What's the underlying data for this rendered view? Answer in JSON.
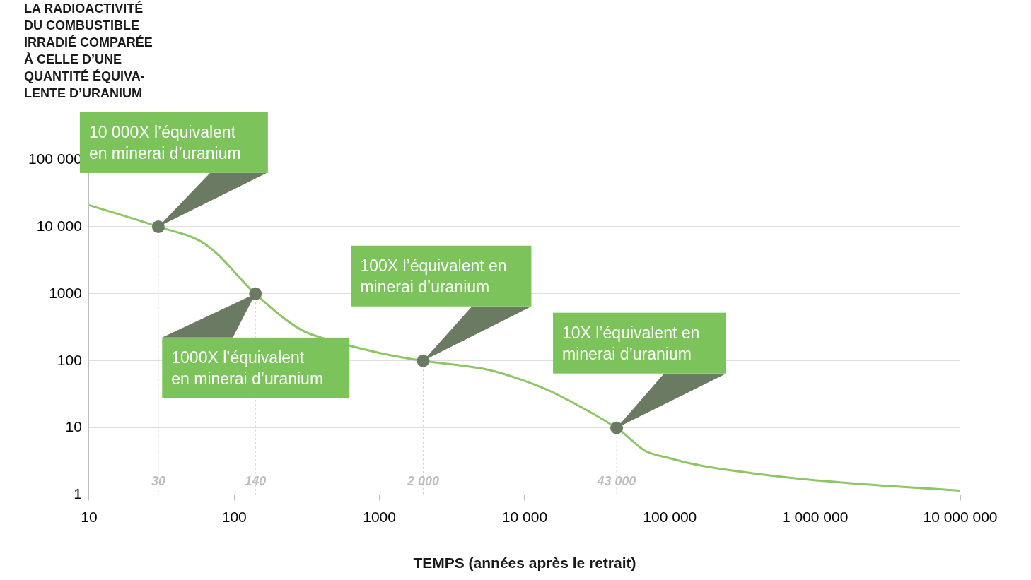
{
  "chart_data": {
    "type": "line",
    "y_label": [
      "LA RADIOACTIVITÉ",
      "DU COMBUSTIBLE",
      "IRRADIÉ COMPARÉE",
      "À CELLE D’UNE",
      "QUANTITÉ ÉQUIVA-",
      "LENTE D’URANIUM"
    ],
    "x_label": "TEMPS (années après le retrait)",
    "log": true,
    "grid": true,
    "color": "#8cc665",
    "x": [
      10,
      30,
      63,
      140,
      285,
      510,
      1020,
      2000,
      5200,
      9300,
      16500,
      43000,
      67000,
      96000,
      170000,
      550000,
      1750000,
      10000000
    ],
    "values": [
      21000,
      10000,
      5500,
      1000,
      295,
      190,
      130,
      100,
      76,
      53,
      32,
      10,
      4.6,
      3.6,
      2.7,
      1.9,
      1.5,
      1.16
    ],
    "xlim": [
      10,
      10000000
    ],
    "ylim": [
      1,
      100000
    ],
    "xticks": [
      10,
      100,
      1000,
      {
        "value": 10000,
        "label": "10 000"
      },
      {
        "value": 100000,
        "label": "100 000"
      },
      {
        "value": 1000000,
        "label": "1 000 000"
      },
      {
        "value": 10000000,
        "label": "10 000 000"
      }
    ],
    "yticks": [
      1,
      10,
      100,
      1000,
      {
        "value": 10000,
        "label": "10 000"
      },
      {
        "value": 100000,
        "label": "100 000"
      }
    ],
    "annotations": [
      {
        "x": 30,
        "y": 10000,
        "x_label": "30",
        "text": [
          "10 000X l’équivalent",
          "en minerai d’uranium"
        ]
      },
      {
        "x": 140,
        "y": 1000,
        "x_label": "140",
        "text": [
          "1000X l’équivalent",
          "en minerai d’uranium"
        ]
      },
      {
        "x": 2000,
        "y": 100,
        "x_label": "2 000",
        "text": [
          "100X l’équivalent en",
          "minerai d’uranium"
        ]
      },
      {
        "x": 43000,
        "y": 10,
        "x_label": "43 000",
        "text": [
          "10X l’équivalent en",
          "minerai d’uranium"
        ]
      }
    ]
  }
}
